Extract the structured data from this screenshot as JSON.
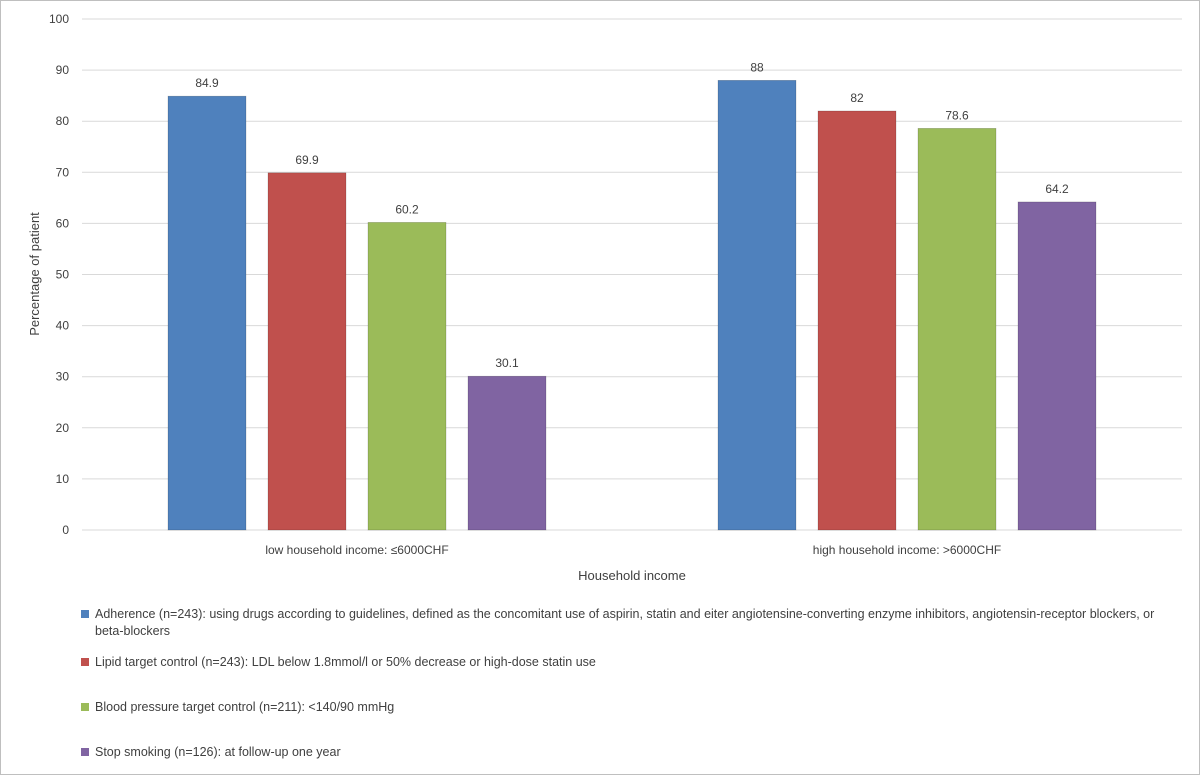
{
  "chart_data": {
    "type": "bar",
    "title": "",
    "xlabel": "Household income",
    "ylabel": "Percentage of patient",
    "ylim": [
      0,
      100
    ],
    "yticks": [
      0,
      10,
      20,
      30,
      40,
      50,
      60,
      70,
      80,
      90,
      100
    ],
    "grid": true,
    "legend_position": "bottom",
    "categories": [
      "low household income: ≤6000CHF",
      "high household income: >6000CHF"
    ],
    "series": [
      {
        "name": "Adherence (n=243): using drugs according to guidelines, defined as the concomitant use of aspirin, statin and eiter angiotensine-converting enzyme inhibitors, angiotensin-receptor blockers, or beta-blockers",
        "color": "#4f81bd",
        "values": [
          84.9,
          88
        ],
        "labels": [
          "84.9",
          "88"
        ]
      },
      {
        "name": "Lipid target control (n=243): LDL below 1.8mmol/l or 50% decrease or high-dose statin use",
        "color": "#c0504d",
        "values": [
          69.9,
          82
        ],
        "labels": [
          "69.9",
          "82"
        ]
      },
      {
        "name": "Blood pressure target control (n=211): <140/90 mmHg",
        "color": "#9bbb59",
        "values": [
          60.2,
          78.6
        ],
        "labels": [
          "60.2",
          "78.6"
        ]
      },
      {
        "name": "Stop smoking (n=126): at follow-up one year",
        "color": "#8064a2",
        "values": [
          30.1,
          64.2
        ],
        "labels": [
          "30.1",
          "64.2"
        ]
      }
    ]
  }
}
